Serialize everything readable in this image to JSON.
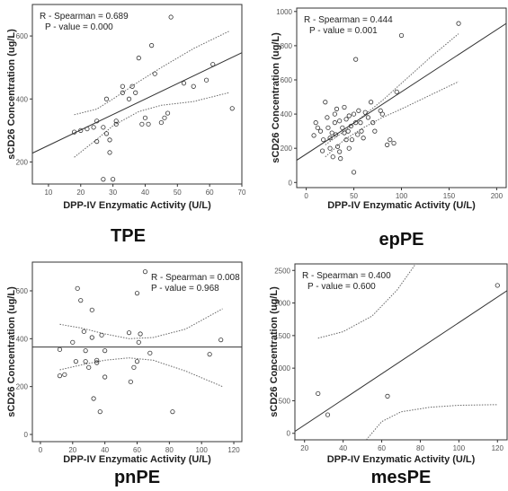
{
  "chart_data": [
    {
      "type": "scatter",
      "panel": "TPE",
      "xlabel": "DPP-IV Enzymatic Activity  (U/L)",
      "ylabel": "sCD26 Concentration (ug/L)",
      "xlim": [
        5,
        70
      ],
      "ylim": [
        130,
        700
      ],
      "xticks": [
        10,
        20,
        30,
        40,
        50,
        60,
        70
      ],
      "yticks": [
        200,
        400,
        600
      ],
      "annotations": [
        "R - Spearman = 0.689",
        "P - value = 0.000"
      ],
      "points": [
        [
          18,
          295
        ],
        [
          20,
          300
        ],
        [
          22,
          305
        ],
        [
          24,
          310
        ],
        [
          25,
          265
        ],
        [
          25,
          330
        ],
        [
          27,
          310
        ],
        [
          27,
          145
        ],
        [
          28,
          400
        ],
        [
          28,
          290
        ],
        [
          29,
          270
        ],
        [
          29,
          230
        ],
        [
          30,
          145
        ],
        [
          31,
          320
        ],
        [
          31,
          330
        ],
        [
          33,
          420
        ],
        [
          33,
          440
        ],
        [
          35,
          400
        ],
        [
          36,
          440
        ],
        [
          37,
          420
        ],
        [
          38,
          530
        ],
        [
          39,
          320
        ],
        [
          40,
          340
        ],
        [
          41,
          320
        ],
        [
          42,
          570
        ],
        [
          43,
          480
        ],
        [
          45,
          325
        ],
        [
          46,
          340
        ],
        [
          47,
          355
        ],
        [
          48,
          660
        ],
        [
          52,
          450
        ],
        [
          55,
          440
        ],
        [
          59,
          460
        ],
        [
          61,
          510
        ],
        [
          67,
          370
        ]
      ],
      "fit": [
        [
          5,
          228
        ],
        [
          70,
          547
        ]
      ],
      "ci_upper": [
        [
          18,
          350
        ],
        [
          25,
          368
        ],
        [
          30,
          400
        ],
        [
          38,
          455
        ],
        [
          45,
          500
        ],
        [
          55,
          560
        ],
        [
          66,
          615
        ]
      ],
      "ci_lower": [
        [
          18,
          215
        ],
        [
          25,
          272
        ],
        [
          30,
          315
        ],
        [
          38,
          360
        ],
        [
          45,
          380
        ],
        [
          55,
          392
        ],
        [
          66,
          420
        ]
      ]
    },
    {
      "type": "scatter",
      "panel": "epPE",
      "xlabel": "DPP-IV Enzymatic Activity (U/L)",
      "ylabel": "sCD26 Concentration (ug/L)",
      "xlim": [
        -10,
        210
      ],
      "ylim": [
        -30,
        1020
      ],
      "xticks": [
        0,
        50,
        100,
        150,
        200
      ],
      "yticks": [
        0,
        200,
        400,
        600,
        800,
        1000
      ],
      "annotations": [
        "R - Spearman = 0.444",
        "P - value = 0.001"
      ],
      "points": [
        [
          8,
          275
        ],
        [
          10,
          350
        ],
        [
          12,
          320
        ],
        [
          15,
          300
        ],
        [
          17,
          185
        ],
        [
          18,
          250
        ],
        [
          20,
          470
        ],
        [
          22,
          380
        ],
        [
          23,
          320
        ],
        [
          25,
          260
        ],
        [
          25,
          200
        ],
        [
          27,
          290
        ],
        [
          28,
          150
        ],
        [
          30,
          350
        ],
        [
          30,
          400
        ],
        [
          31,
          280
        ],
        [
          32,
          430
        ],
        [
          33,
          210
        ],
        [
          35,
          360
        ],
        [
          35,
          180
        ],
        [
          36,
          140
        ],
        [
          38,
          320
        ],
        [
          40,
          440
        ],
        [
          40,
          290
        ],
        [
          42,
          250
        ],
        [
          42,
          370
        ],
        [
          44,
          300
        ],
        [
          45,
          200
        ],
        [
          45,
          390
        ],
        [
          47,
          330
        ],
        [
          48,
          250
        ],
        [
          50,
          400
        ],
        [
          50,
          60
        ],
        [
          52,
          350
        ],
        [
          52,
          720
        ],
        [
          54,
          280
        ],
        [
          55,
          420
        ],
        [
          57,
          350
        ],
        [
          58,
          300
        ],
        [
          60,
          260
        ],
        [
          62,
          410
        ],
        [
          65,
          380
        ],
        [
          68,
          470
        ],
        [
          70,
          350
        ],
        [
          72,
          300
        ],
        [
          78,
          420
        ],
        [
          80,
          400
        ],
        [
          85,
          220
        ],
        [
          88,
          250
        ],
        [
          92,
          230
        ],
        [
          95,
          530
        ],
        [
          100,
          860
        ],
        [
          160,
          930
        ]
      ],
      "fit": [
        [
          -10,
          130
        ],
        [
          210,
          930
        ]
      ],
      "ci_upper": [
        [
          20,
          220
        ],
        [
          40,
          300
        ],
        [
          60,
          390
        ],
        [
          80,
          480
        ],
        [
          100,
          580
        ],
        [
          130,
          730
        ],
        [
          160,
          870
        ]
      ],
      "ci_lower": [
        [
          20,
          150
        ],
        [
          40,
          250
        ],
        [
          60,
          320
        ],
        [
          80,
          380
        ],
        [
          100,
          430
        ],
        [
          130,
          510
        ],
        [
          160,
          590
        ]
      ]
    },
    {
      "type": "scatter",
      "panel": "pnPE",
      "xlabel": "DPP-IV Enzymatic Activity (U/L)",
      "ylabel": "sCD26 Concentration (ug/L)",
      "xlim": [
        -5,
        125
      ],
      "ylim": [
        -30,
        720
      ],
      "xticks": [
        0,
        20,
        40,
        60,
        80,
        100,
        120
      ],
      "yticks": [
        0,
        200,
        400,
        600
      ],
      "annotations": [
        "R - Spearman = 0.008",
        "P - value = 0.968"
      ],
      "points": [
        [
          12,
          245
        ],
        [
          12,
          355
        ],
        [
          15,
          250
        ],
        [
          20,
          385
        ],
        [
          22,
          305
        ],
        [
          23,
          610
        ],
        [
          25,
          560
        ],
        [
          27,
          430
        ],
        [
          28,
          350
        ],
        [
          28,
          305
        ],
        [
          30,
          280
        ],
        [
          32,
          520
        ],
        [
          32,
          405
        ],
        [
          33,
          150
        ],
        [
          35,
          310
        ],
        [
          35,
          300
        ],
        [
          37,
          95
        ],
        [
          38,
          415
        ],
        [
          40,
          350
        ],
        [
          40,
          240
        ],
        [
          55,
          425
        ],
        [
          56,
          220
        ],
        [
          58,
          280
        ],
        [
          60,
          305
        ],
        [
          60,
          590
        ],
        [
          61,
          385
        ],
        [
          62,
          420
        ],
        [
          65,
          680
        ],
        [
          68,
          340
        ],
        [
          82,
          95
        ],
        [
          105,
          335
        ],
        [
          112,
          395
        ]
      ],
      "fit": [
        [
          -5,
          365
        ],
        [
          125,
          365
        ]
      ],
      "ci_upper": [
        [
          12,
          460
        ],
        [
          25,
          445
        ],
        [
          40,
          420
        ],
        [
          55,
          400
        ],
        [
          70,
          405
        ],
        [
          90,
          440
        ],
        [
          113,
          525
        ]
      ],
      "ci_lower": [
        [
          12,
          270
        ],
        [
          25,
          290
        ],
        [
          40,
          310
        ],
        [
          55,
          320
        ],
        [
          70,
          310
        ],
        [
          90,
          265
        ],
        [
          113,
          200
        ]
      ]
    },
    {
      "type": "scatter",
      "panel": "mesPE",
      "xlabel": "DPP-IV Enzymatic Activity (U/L)",
      "ylabel": "sCD26 Concentration (ug/L)",
      "xlim": [
        15,
        125
      ],
      "ylim": [
        -100,
        2600
      ],
      "xticks": [
        20,
        40,
        60,
        80,
        100,
        120
      ],
      "yticks": [
        0,
        500,
        1000,
        1500,
        2000,
        2500
      ],
      "annotations": [
        "R - Spearman = 0.400",
        "P - value = 0.600"
      ],
      "points": [
        [
          27,
          610
        ],
        [
          32,
          285
        ],
        [
          63,
          570
        ],
        [
          120,
          2270
        ]
      ],
      "fit": [
        [
          15,
          30
        ],
        [
          125,
          2190
        ]
      ],
      "ci_upper": [
        [
          27,
          1460
        ],
        [
          40,
          1560
        ],
        [
          55,
          1800
        ],
        [
          68,
          2200
        ],
        [
          80,
          2700
        ]
      ],
      "ci_lower": [
        [
          52,
          -100
        ],
        [
          60,
          180
        ],
        [
          70,
          330
        ],
        [
          85,
          400
        ],
        [
          100,
          430
        ],
        [
          120,
          440
        ]
      ]
    }
  ],
  "panel_titles": [
    "TPE",
    "epPE",
    "pnPE",
    "mesPE"
  ]
}
